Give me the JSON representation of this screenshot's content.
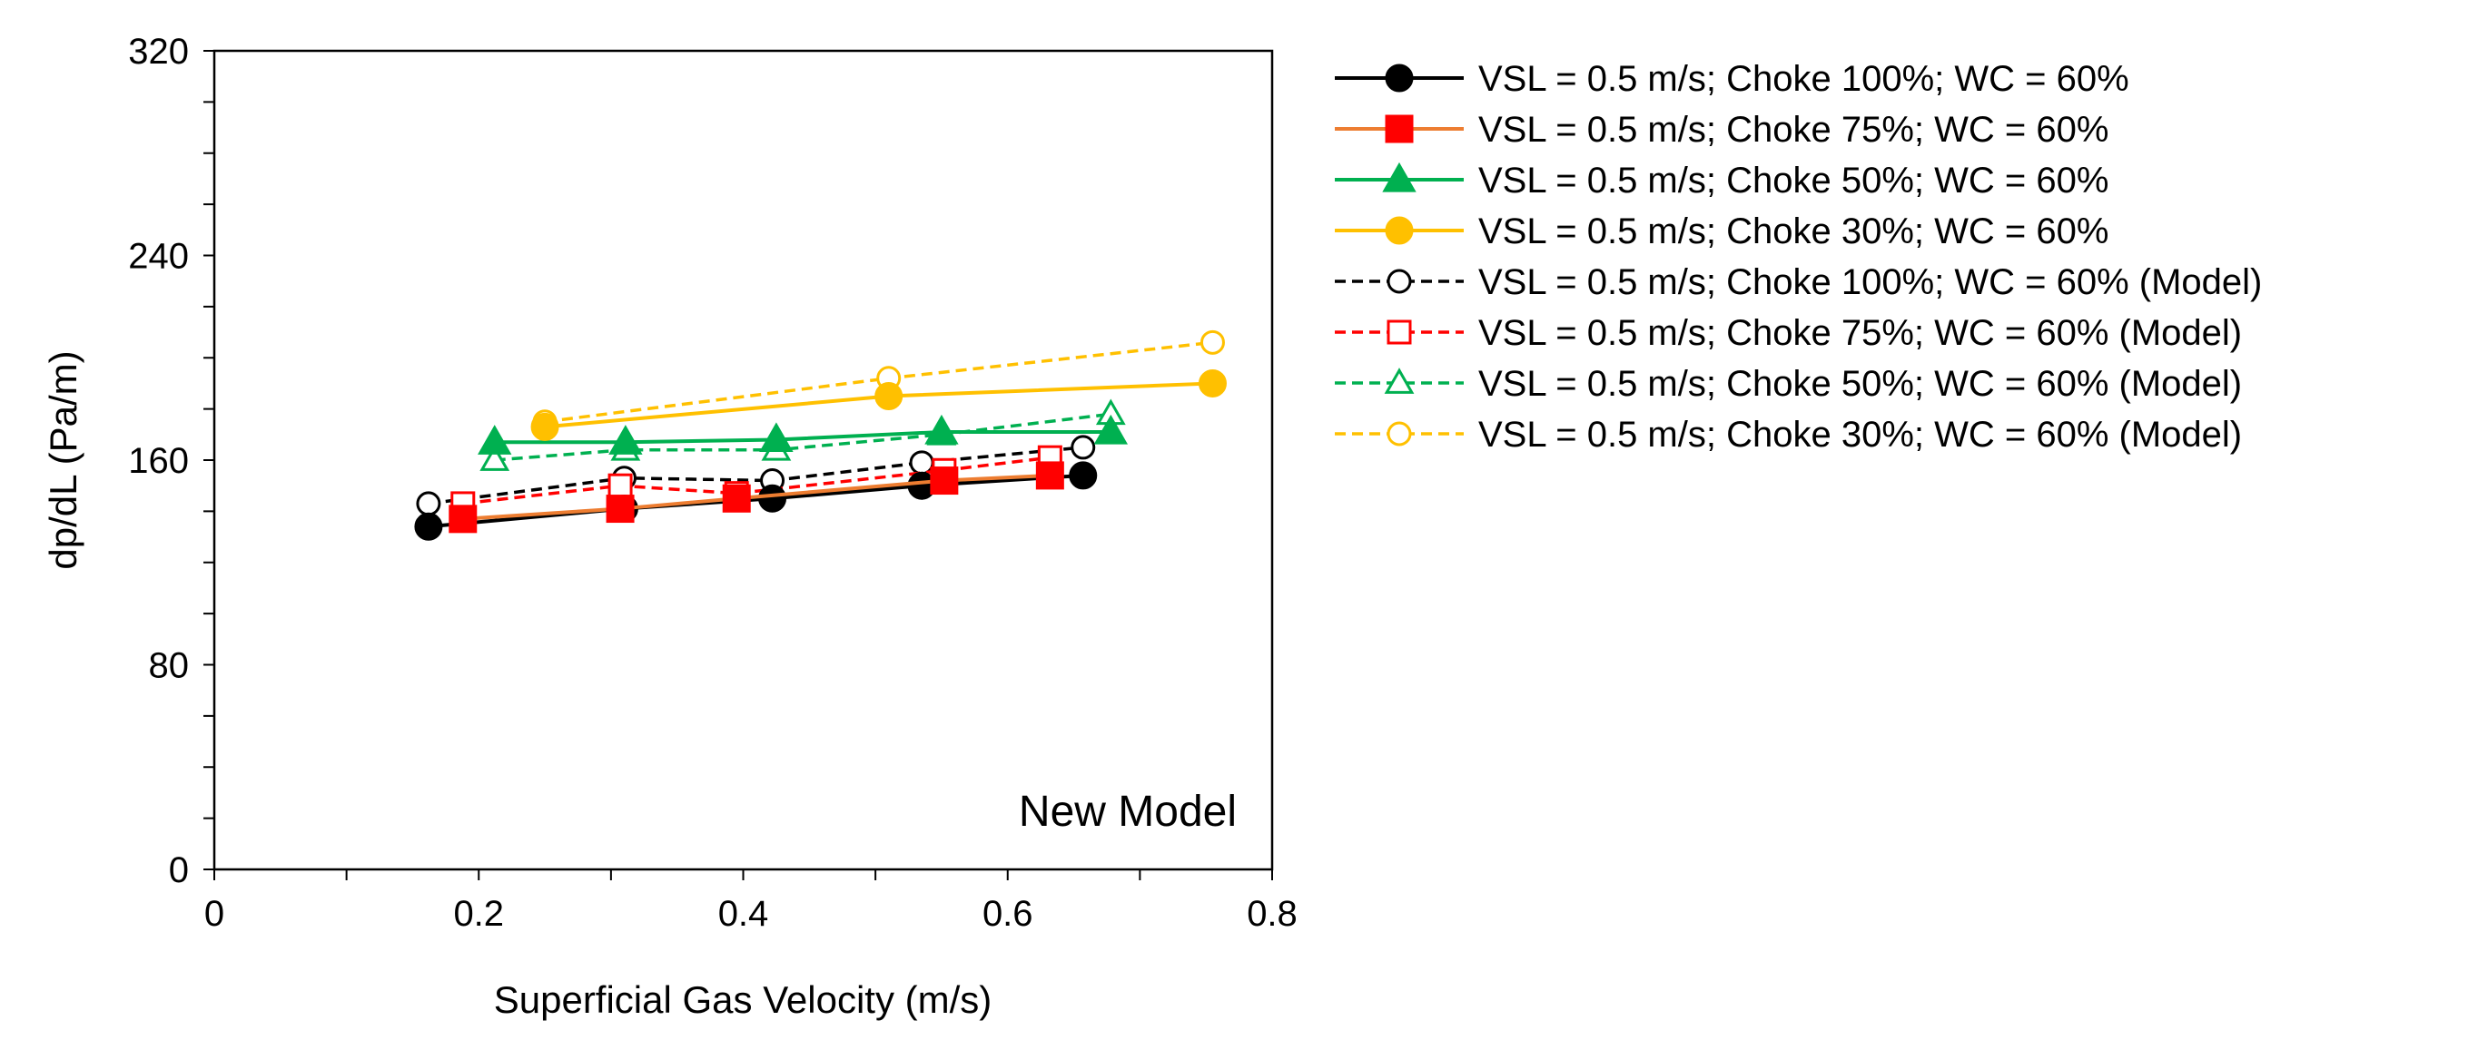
{
  "chart_data": {
    "type": "line",
    "title": "",
    "xlabel": "Superficial Gas Velocity (m/s)",
    "ylabel": "dp/dL  (Pa/m)",
    "xlim": [
      0,
      0.8
    ],
    "ylim": [
      0,
      320
    ],
    "xticks": [
      0,
      0.2,
      0.4,
      0.6,
      0.8
    ],
    "xtick_labels": [
      "0",
      "0.2",
      "0.4",
      "0.6",
      "0.8"
    ],
    "yticks": [
      0,
      80,
      160,
      240,
      320
    ],
    "ytick_labels": [
      "0",
      "80",
      "160",
      "240",
      "320"
    ],
    "grid": false,
    "legend_position": "right",
    "annotation": "New Model",
    "series": [
      {
        "name": "VSL = 0.5 m/s; Choke 100%; WC = 60%",
        "color": "#000000",
        "marker": "circle",
        "filled": true,
        "dashed": false,
        "x": [
          0.162,
          0.31,
          0.422,
          0.535,
          0.657
        ],
        "y": [
          134,
          141,
          145,
          150,
          154
        ]
      },
      {
        "name": "VSL = 0.5 m/s; Choke 75%; WC = 60%",
        "color": "#ED7D31",
        "marker_color": "#FF0000",
        "marker": "square",
        "filled": true,
        "dashed": false,
        "x": [
          0.188,
          0.307,
          0.395,
          0.552,
          0.632
        ],
        "y": [
          137,
          141,
          145,
          152,
          154
        ]
      },
      {
        "name": "VSL = 0.5 m/s; Choke 50%; WC = 60%",
        "color": "#00B050",
        "marker": "triangle",
        "filled": true,
        "dashed": false,
        "x": [
          0.212,
          0.311,
          0.425,
          0.55,
          0.678
        ],
        "y": [
          167,
          167,
          168,
          171,
          171
        ]
      },
      {
        "name": "VSL = 0.5 m/s; Choke 30%; WC = 60%",
        "color": "#FFC000",
        "marker": "circle",
        "filled": true,
        "dashed": false,
        "x": [
          0.25,
          0.51,
          0.755
        ],
        "y": [
          173,
          185,
          190
        ]
      },
      {
        "name": "VSL = 0.5 m/s; Choke 100%; WC = 60% (Model)",
        "color": "#000000",
        "marker": "circle",
        "filled": false,
        "dashed": true,
        "x": [
          0.162,
          0.31,
          0.422,
          0.535,
          0.657
        ],
        "y": [
          143,
          153,
          152,
          159,
          165
        ]
      },
      {
        "name": "VSL = 0.5 m/s; Choke 75%; WC = 60% (Model)",
        "color": "#FF0000",
        "marker": "square",
        "filled": false,
        "dashed": true,
        "x": [
          0.188,
          0.307,
          0.395,
          0.552,
          0.632
        ],
        "y": [
          143,
          150,
          147,
          156,
          161
        ]
      },
      {
        "name": "VSL = 0.5 m/s; Choke 50%; WC = 60% (Model)",
        "color": "#00B050",
        "marker": "triangle",
        "filled": false,
        "dashed": true,
        "x": [
          0.212,
          0.311,
          0.425,
          0.55,
          0.678
        ],
        "y": [
          160,
          164,
          164,
          170,
          178
        ]
      },
      {
        "name": "VSL = 0.5 m/s; Choke 30%; WC = 60% (Model)",
        "color": "#FFC000",
        "marker": "circle",
        "filled": false,
        "dashed": true,
        "x": [
          0.25,
          0.51,
          0.755
        ],
        "y": [
          175,
          192,
          206
        ]
      }
    ]
  }
}
